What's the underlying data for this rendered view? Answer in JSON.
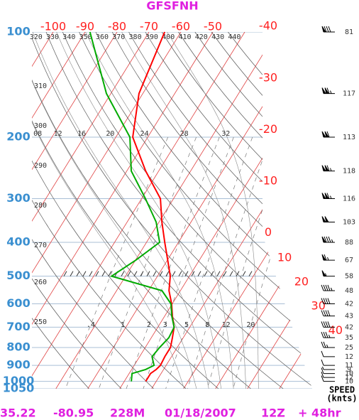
{
  "chart_data": {
    "type": "skewt",
    "title": "GFSFNH",
    "pressure": [
      1000,
      950,
      925,
      900,
      850,
      800,
      750,
      700,
      650,
      600,
      550,
      500,
      450,
      400,
      350,
      300,
      250,
      200,
      150,
      100
    ],
    "series": [
      {
        "color": "#ff0000",
        "values": [
          -3.3,
          -3.3,
          -2.3,
          -1.8,
          -2.1,
          -2.1,
          -3.4,
          -4.9,
          -7.6,
          -10.2,
          -13.6,
          -16.0,
          -19.9,
          -24.3,
          -29.1,
          -34.1,
          -44.1,
          -54.7,
          -61.2,
          -65.1
        ]
      },
      {
        "color": "#00aa00",
        "values": [
          -7.8,
          -9.1,
          -5.6,
          -3.8,
          -6.1,
          -5.5,
          -4.5,
          -4.9,
          -7.8,
          -10.4,
          -15.8,
          -34.4,
          -29.9,
          -25.9,
          -30.9,
          -38.8,
          -48.6,
          -55.6,
          -71.4,
          -88.5
        ]
      }
    ],
    "ylim": [
      1050,
      100
    ],
    "log_y": true,
    "yticks": [
      100,
      200,
      300,
      400,
      500,
      600,
      700,
      800,
      900,
      1000,
      1050
    ],
    "xticks": [
      -100,
      -90,
      -80,
      -70,
      -60,
      -50,
      -40,
      -30,
      -20,
      -10,
      0,
      10,
      20,
      30,
      40
    ],
    "dry_adiabats": [
      250,
      260,
      270,
      280,
      290,
      300,
      310,
      320,
      330,
      340,
      350,
      360,
      370,
      380,
      390,
      400,
      410,
      420,
      430,
      440
    ],
    "moist_adiabats": [
      {
        "value": 8,
        "label": "08"
      },
      12,
      16,
      20,
      24,
      28,
      32
    ],
    "mixing_ratios": [
      {
        "value": 0.4,
        "label": ".4"
      },
      1,
      2,
      3,
      5,
      8,
      12,
      20
    ],
    "wind": {
      "pressure": [
        100,
        150,
        200,
        250,
        300,
        350,
        400,
        450,
        500,
        550,
        600,
        650,
        700,
        750,
        800,
        850,
        900,
        925,
        950,
        975,
        1000
      ],
      "speed": [
        81,
        117,
        113,
        118,
        116,
        103,
        88,
        67,
        58,
        48,
        42,
        43,
        42,
        35,
        25,
        12,
        11,
        9,
        10,
        12,
        10
      ],
      "title": "SPEED",
      "unit": "(knts)"
    },
    "footer": [
      "35.22",
      "-80.95",
      "228M",
      "01/18/2007",
      "12Z",
      "+ 48hr"
    ]
  }
}
